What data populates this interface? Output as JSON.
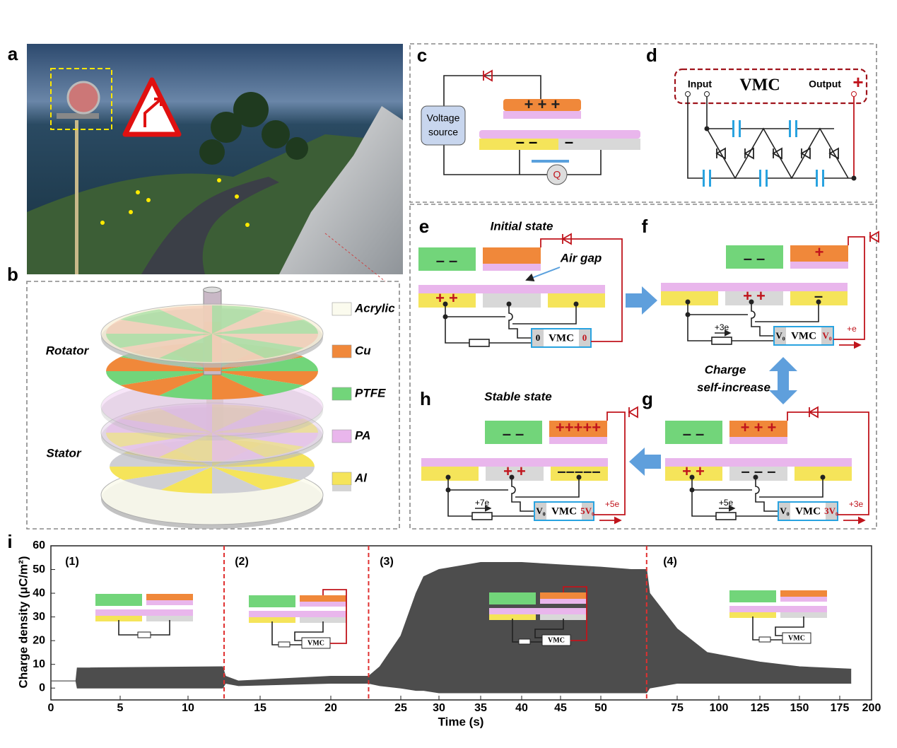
{
  "panel_labels": [
    "a",
    "b",
    "c",
    "d",
    "e",
    "f",
    "g",
    "h",
    "i"
  ],
  "b": {
    "rotator": "Rotator",
    "stator": "Stator",
    "legend": [
      {
        "label": "Acrylic",
        "color": "#fbfbee"
      },
      {
        "label": "Cu",
        "color": "#f0883a"
      },
      {
        "label": "PTFE",
        "color": "#72d57a"
      },
      {
        "label": "PA",
        "color": "#e9b6ec"
      },
      {
        "label": "Al",
        "color": "#f5e45a"
      }
    ]
  },
  "c": {
    "source": [
      "Voltage",
      "source"
    ],
    "meter": "Q",
    "charges": {
      "top": "+ + +",
      "left": "– –",
      "right": "–"
    }
  },
  "d": {
    "input": "Input",
    "title": "VMC",
    "output": "Output",
    "plus": "+"
  },
  "e": {
    "caption": "Initial state",
    "note": "Air gap",
    "charges": {
      "ptfe": "– –",
      "left": "+ +"
    },
    "vmc": [
      "0",
      "VMC",
      "0"
    ]
  },
  "f": {
    "charges": {
      "ptfe": "– –",
      "top": "+",
      "middle": "+ +",
      "right": "–"
    },
    "vmc": [
      "V₀",
      "VMC",
      "V₀"
    ],
    "transfer": "+3e",
    "output": "+e"
  },
  "switch": [
    "Charge",
    "self-increase"
  ],
  "g": {
    "charges": {
      "ptfe": "– –",
      "top": "+ + +",
      "left": "+ +",
      "middle": "– – –"
    },
    "vmc": [
      "V₀",
      "VMC",
      "3V₀"
    ],
    "transfer": "+5e",
    "output": "+3e"
  },
  "h": {
    "caption": "Stable state",
    "charges": {
      "ptfe": "– –",
      "top": "+++++",
      "middle": "+ +",
      "right": "–––––"
    },
    "vmc": [
      "V₀",
      "VMC",
      "5V₀"
    ],
    "transfer": "+7e",
    "output": "+5e"
  },
  "chart_data": {
    "type": "band",
    "xlabel": "Time (s)",
    "ylabel": "Charge density (μC/m²)",
    "color": "#4d4d4d",
    "x": [
      0,
      1.8,
      1.9,
      12.4,
      12.6,
      13.5,
      20,
      22.7,
      23.5,
      25,
      27,
      28,
      30,
      35,
      40,
      45,
      50,
      60,
      65,
      66,
      75,
      93,
      125,
      150,
      184
    ],
    "upper": [
      3,
      3,
      8.5,
      9,
      5,
      3,
      5,
      5,
      9,
      22,
      40,
      47,
      50,
      53,
      53,
      52,
      51,
      50,
      50,
      40,
      25,
      15,
      11,
      9,
      8
    ],
    "lower": [
      3,
      3,
      0,
      0,
      2,
      1,
      2,
      2,
      1,
      0,
      -1,
      -1,
      -2,
      -2,
      -2,
      -2,
      -2,
      -2,
      -2,
      0,
      2,
      2,
      2,
      2,
      2
    ],
    "xlim": [
      0,
      200
    ],
    "xticks": [
      0,
      5,
      10,
      15,
      20,
      25,
      30,
      35,
      40,
      45,
      50,
      75,
      100,
      125,
      150,
      175,
      200
    ],
    "ylim": [
      -5,
      60
    ],
    "yticks": [
      0,
      10,
      20,
      30,
      40,
      50,
      60
    ],
    "dividers": [
      12.5,
      22.7,
      65
    ],
    "regions": [
      {
        "label": "(1)"
      },
      {
        "label": "(2)",
        "inset": "VMC"
      },
      {
        "label": "(3)",
        "inset": "VMC"
      },
      {
        "label": "(4)",
        "inset": "VMC"
      }
    ]
  }
}
